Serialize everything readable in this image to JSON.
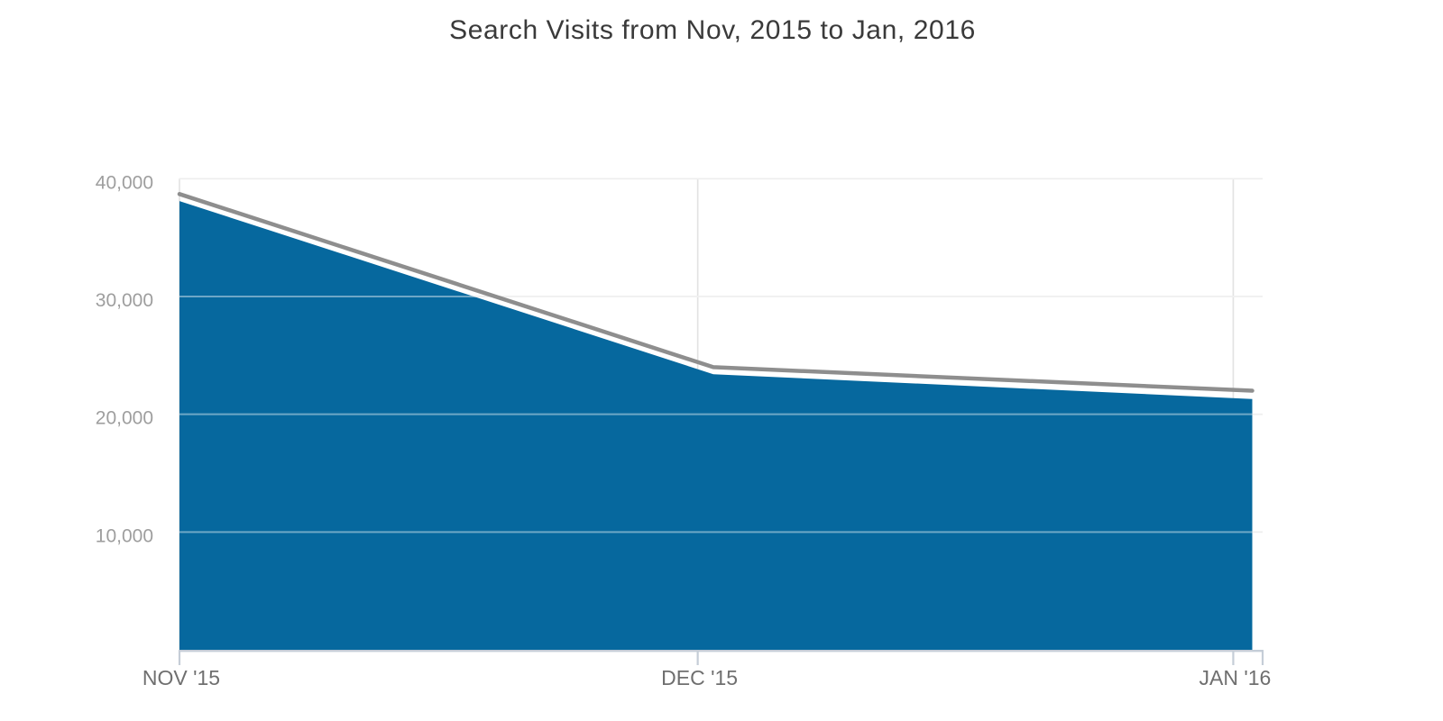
{
  "page": {
    "background": "#FFFFFF"
  },
  "chart_data": {
    "type": "area",
    "title": "Search Visits from Nov, 2015 to Jan, 2016",
    "xlabel": "",
    "ylabel": "",
    "x_tick_labels": [
      "NOV '15",
      "DEC '15",
      "JAN '16"
    ],
    "x_tick_days": [
      0,
      30,
      61
    ],
    "x_range_days": [
      0,
      62.7
    ],
    "x_days": [
      0,
      30.9,
      62.1
    ],
    "y_ticks": [
      10000,
      20000,
      30000,
      40000
    ],
    "y_tick_labels": [
      "10,000",
      "20,000",
      "30,000",
      "40,000"
    ],
    "ylim": [
      0,
      40000
    ],
    "grid": true,
    "legend": "none",
    "series": [
      {
        "name": "search-visits",
        "type": "area",
        "color": "#06689E",
        "values": [
          38100,
          23400,
          21300
        ]
      },
      {
        "name": "gray-overlay-line",
        "type": "line",
        "color": "#8E8E8E",
        "values": [
          38700,
          24000,
          22000
        ]
      }
    ],
    "colors": {
      "gridline": "#E2E2E2",
      "gridline_over_area": "rgba(255,255,255,0.42)",
      "axis_line": "#C5CDD7",
      "title_text": "#3A3A3A",
      "x_label_text": "#6F6F6F",
      "y_label_text": "#9E9E9E"
    }
  }
}
